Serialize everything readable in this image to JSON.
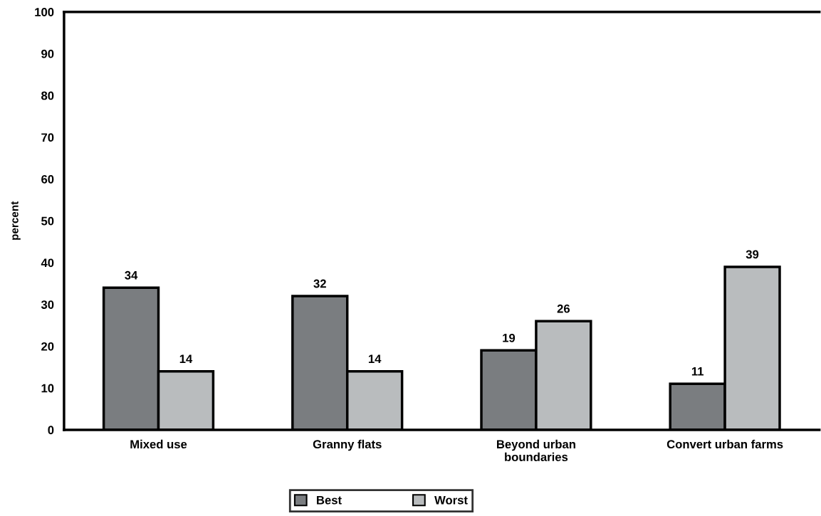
{
  "chart_data": {
    "type": "bar",
    "ylabel": "percent",
    "categories": [
      "Mixed use",
      "Granny flats",
      "Beyond urban\nboundaries",
      "Convert urban farms"
    ],
    "series": [
      {
        "name": "Best",
        "color": "#7a7d80",
        "values": [
          34,
          32,
          19,
          11
        ]
      },
      {
        "name": "Worst",
        "color": "#b9bcbe",
        "values": [
          14,
          14,
          26,
          39
        ]
      }
    ],
    "ylim": [
      0,
      100
    ],
    "yticks": [
      0,
      10,
      20,
      30,
      40,
      50,
      60,
      70,
      80,
      90,
      100
    ],
    "data_labels": true,
    "legend": "bottom",
    "grid": false
  }
}
